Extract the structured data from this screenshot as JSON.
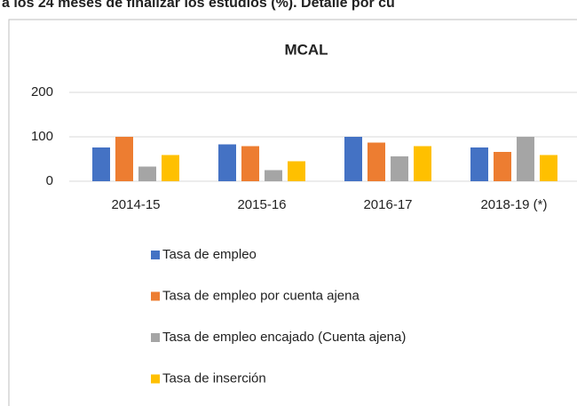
{
  "heading": "a los 24 meses de finalizar los estudios (%). Detalle por cu",
  "chart_data": {
    "type": "bar",
    "title": "MCAL",
    "categories": [
      "2014-15",
      "2015-16",
      "2016-17",
      "2018-19 (*)"
    ],
    "series": [
      {
        "name": "Tasa de empleo",
        "color": "#4472c4",
        "values": [
          76,
          83,
          100,
          76
        ]
      },
      {
        "name": "Tasa de empleo por cuenta ajena",
        "color": "#ed7d31",
        "values": [
          100,
          79,
          87,
          66
        ]
      },
      {
        "name": "Tasa de empleo encajado (Cuenta ajena)",
        "color": "#a5a5a5",
        "values": [
          33,
          25,
          56,
          100
        ]
      },
      {
        "name": "Tasa de inserción",
        "color": "#ffc000",
        "values": [
          59,
          45,
          79,
          59
        ]
      }
    ],
    "ylim": [
      0,
      200
    ],
    "yticks": [
      0,
      100,
      200
    ],
    "grid": true,
    "legend": "bottom"
  }
}
